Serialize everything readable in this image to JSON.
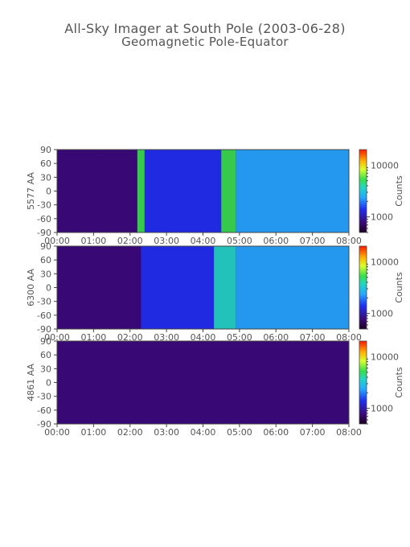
{
  "title": "All-Sky Imager at South Pole (2003-06-28)",
  "subtitle": "Geomagnetic Pole-Equator",
  "chart_data": [
    {
      "type": "heatmap",
      "ylabel": "5577 AA",
      "x_ticks": [
        "00:00",
        "01:00",
        "02:00",
        "03:00",
        "04:00",
        "05:00",
        "06:00",
        "07:00",
        "08:00"
      ],
      "xlim": [
        0,
        8
      ],
      "y_ticks": [
        "90",
        "60",
        "30",
        "0",
        "-30",
        "-60",
        "-90"
      ],
      "ylim": [
        -90,
        90
      ],
      "colorbar": {
        "label": "Counts",
        "ticks": [
          "10000",
          "1000"
        ],
        "scale": "log"
      },
      "regions": [
        {
          "x": [
            0.0,
            1.2
          ],
          "level": 0.05
        },
        {
          "x": [
            1.2,
            2.2
          ],
          "level": 0.12
        },
        {
          "x": [
            2.2,
            2.4
          ],
          "level": 0.55
        },
        {
          "x": [
            2.4,
            4.5
          ],
          "level": 0.22
        },
        {
          "x": [
            4.5,
            4.9
          ],
          "level": 0.55
        },
        {
          "x": [
            4.9,
            8.0
          ],
          "level": 0.35
        }
      ]
    },
    {
      "type": "heatmap",
      "ylabel": "6300 AA",
      "x_ticks": [
        "00:00",
        "01:00",
        "02:00",
        "03:00",
        "04:00",
        "05:00",
        "06:00",
        "07:00",
        "08:00"
      ],
      "xlim": [
        0,
        8
      ],
      "y_ticks": [
        "90",
        "60",
        "30",
        "0",
        "-30",
        "-60",
        "-90"
      ],
      "ylim": [
        -90,
        90
      ],
      "colorbar": {
        "label": "Counts",
        "ticks": [
          "10000",
          "1000"
        ],
        "scale": "log"
      },
      "regions": [
        {
          "x": [
            0.0,
            2.3
          ],
          "level": 0.08
        },
        {
          "x": [
            2.3,
            4.3
          ],
          "level": 0.22
        },
        {
          "x": [
            4.3,
            4.9
          ],
          "level": 0.5
        },
        {
          "x": [
            4.9,
            8.0
          ],
          "level": 0.3
        }
      ]
    },
    {
      "type": "heatmap",
      "ylabel": "4861 AA",
      "x_ticks": [
        "00:00",
        "01:00",
        "02:00",
        "03:00",
        "04:00",
        "05:00",
        "06:00",
        "07:00",
        "08:00"
      ],
      "xlim": [
        0,
        8
      ],
      "y_ticks": [
        "90",
        "60",
        "30",
        "0",
        "-30",
        "-60",
        "-90"
      ],
      "ylim": [
        -90,
        90
      ],
      "colorbar": {
        "label": "Counts",
        "ticks": [
          "10000",
          "1000"
        ],
        "scale": "log"
      },
      "regions": [
        {
          "x": [
            0.0,
            8.0
          ],
          "level": 0.05
        }
      ]
    }
  ]
}
